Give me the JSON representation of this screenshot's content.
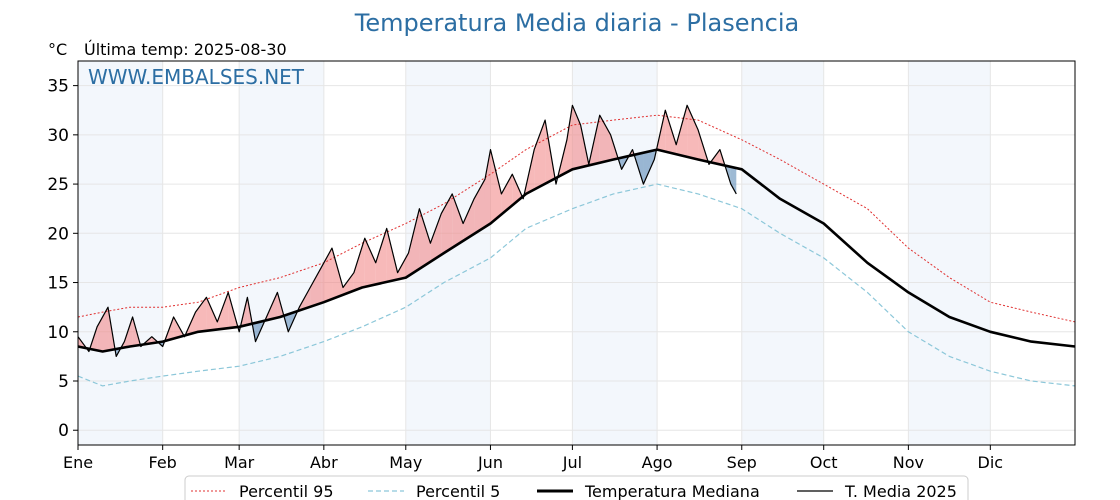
{
  "title": "Temperatura Media diaria - Plasencia",
  "unit_label": "°C",
  "last_temp_label": "Última temp: 2025-08-30",
  "watermark": "WWW.EMBALSES.NET",
  "chart_data": {
    "type": "line",
    "title": "Temperatura Media diaria - Plasencia",
    "ylabel": "°C",
    "ylim": [
      -1.5,
      37.5
    ],
    "xlim": [
      1,
      366
    ],
    "grid": true,
    "legend_placement": "bottom-center",
    "yticks": [
      0,
      5,
      10,
      15,
      20,
      25,
      30,
      35
    ],
    "month_labels": [
      "Ene",
      "Feb",
      "Mar",
      "Abr",
      "May",
      "Jun",
      "Jul",
      "Ago",
      "Sep",
      "Oct",
      "Nov",
      "Dic"
    ],
    "month_start_days": [
      1,
      32,
      60,
      91,
      121,
      152,
      182,
      213,
      244,
      274,
      305,
      335
    ],
    "series": [
      {
        "name": "Percentil 95",
        "color": "#e03030",
        "style": "dotted",
        "x": [
          1,
          10,
          20,
          32,
          45,
          60,
          75,
          91,
          105,
          121,
          135,
          152,
          165,
          182,
          197,
          213,
          228,
          244,
          258,
          274,
          290,
          305,
          320,
          335,
          350,
          366
        ],
        "y": [
          11.5,
          12.0,
          12.5,
          12.5,
          13.0,
          14.5,
          15.5,
          17.0,
          19.0,
          21.0,
          23.0,
          26.0,
          28.5,
          31.0,
          31.5,
          32.0,
          31.5,
          29.5,
          27.5,
          25.0,
          22.5,
          18.5,
          15.5,
          13.0,
          12.0,
          11.0
        ]
      },
      {
        "name": "Percentil 5",
        "color": "#8cc7d9",
        "style": "dashed",
        "x": [
          1,
          10,
          20,
          32,
          45,
          60,
          75,
          91,
          105,
          121,
          135,
          152,
          165,
          182,
          197,
          213,
          228,
          244,
          258,
          274,
          290,
          305,
          320,
          335,
          350,
          366
        ],
        "y": [
          5.5,
          4.5,
          5.0,
          5.5,
          6.0,
          6.5,
          7.5,
          9.0,
          10.5,
          12.5,
          15.0,
          17.5,
          20.5,
          22.5,
          24.0,
          25.0,
          24.0,
          22.5,
          20.0,
          17.5,
          14.0,
          10.0,
          7.5,
          6.0,
          5.0,
          4.5
        ]
      },
      {
        "name": "Temperatura Mediana",
        "color": "#000000",
        "style": "solid-thick",
        "x": [
          1,
          10,
          20,
          32,
          45,
          60,
          75,
          91,
          105,
          121,
          135,
          152,
          165,
          182,
          197,
          213,
          228,
          244,
          258,
          274,
          290,
          305,
          320,
          335,
          350,
          366
        ],
        "y": [
          8.5,
          8.0,
          8.5,
          9.0,
          10.0,
          10.5,
          11.5,
          13.0,
          14.5,
          15.5,
          18.0,
          21.0,
          24.0,
          26.5,
          27.5,
          28.5,
          27.5,
          26.5,
          23.5,
          21.0,
          17.0,
          14.0,
          11.5,
          10.0,
          9.0,
          8.5
        ]
      },
      {
        "name": "T. Media 2025",
        "color": "#000000",
        "style": "solid",
        "x": [
          1,
          5,
          8,
          12,
          15,
          18,
          21,
          24,
          28,
          32,
          36,
          40,
          44,
          48,
          52,
          56,
          60,
          63,
          66,
          70,
          74,
          78,
          82,
          86,
          90,
          94,
          98,
          102,
          106,
          110,
          114,
          118,
          122,
          126,
          130,
          134,
          138,
          142,
          146,
          150,
          152,
          156,
          160,
          164,
          168,
          172,
          176,
          180,
          182,
          185,
          188,
          192,
          196,
          200,
          204,
          208,
          212,
          216,
          220,
          224,
          228,
          232,
          236,
          240,
          242
        ],
        "y": [
          9.5,
          8.0,
          10.5,
          12.5,
          7.5,
          9.0,
          11.5,
          8.5,
          9.5,
          8.5,
          11.5,
          9.5,
          12.0,
          13.5,
          11.0,
          14.0,
          10.0,
          13.5,
          9.0,
          11.5,
          14.0,
          10.0,
          12.5,
          14.5,
          16.5,
          18.5,
          14.5,
          16.0,
          19.5,
          17.0,
          20.5,
          16.0,
          18.0,
          22.5,
          19.0,
          22.0,
          24.0,
          21.0,
          23.5,
          25.5,
          28.5,
          24.0,
          26.0,
          23.5,
          28.5,
          31.5,
          25.0,
          29.5,
          33.0,
          31.0,
          27.0,
          32.0,
          30.0,
          26.5,
          28.5,
          25.0,
          27.5,
          32.5,
          29.0,
          33.0,
          30.5,
          27.0,
          28.5,
          25.0,
          24.0
        ]
      }
    ]
  },
  "legend": [
    {
      "label": "Percentil 95",
      "color": "#e03030",
      "style": "dotted"
    },
    {
      "label": "Percentil 5",
      "color": "#8cc7d9",
      "style": "dashed"
    },
    {
      "label": "Temperatura Mediana",
      "color": "#000000",
      "style": "solid-thick"
    },
    {
      "label": "T. Media 2025",
      "color": "#000000",
      "style": "solid"
    }
  ]
}
